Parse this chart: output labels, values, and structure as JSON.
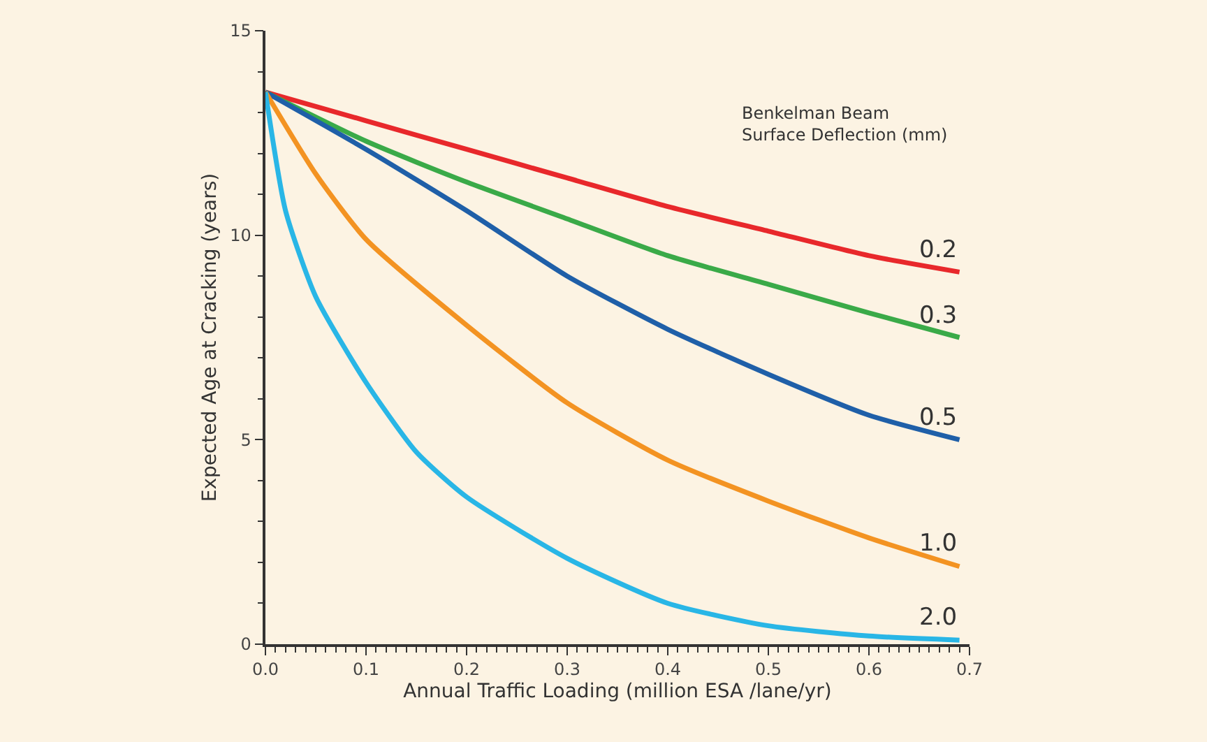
{
  "chart_data": {
    "type": "line",
    "xlabel": "Annual Traffic Loading (million ESA /lane/yr)",
    "ylabel": "Expected Age at Cracking (years)",
    "legend_title": "Benkelman Beam\nSurface Deflection (mm)",
    "xlim": [
      0,
      0.7
    ],
    "ylim": [
      0,
      15
    ],
    "xticks": [
      {
        "value": 0,
        "label": "0.0"
      },
      0.1,
      0.2,
      0.3,
      0.4,
      0.5,
      0.6,
      0.7
    ],
    "yticks": [
      0,
      5,
      10,
      15
    ],
    "grid": false,
    "legend": false,
    "marker": "none",
    "line_style": "solid",
    "series": [
      {
        "name": "0.2",
        "color": "#e8282b",
        "x": [
          0,
          0.1,
          0.2,
          0.3,
          0.4,
          0.5,
          0.6,
          0.69
        ],
        "values": [
          13.5,
          12.8,
          12.1,
          11.4,
          10.7,
          10.1,
          9.5,
          9.1
        ]
      },
      {
        "name": "0.3",
        "color": "#3aaa48",
        "x": [
          0,
          0.1,
          0.2,
          0.3,
          0.4,
          0.5,
          0.6,
          0.69
        ],
        "values": [
          13.5,
          12.3,
          11.3,
          10.4,
          9.5,
          8.8,
          8.1,
          7.5
        ]
      },
      {
        "name": "0.5",
        "color": "#1f5fa8",
        "x": [
          0,
          0.1,
          0.2,
          0.3,
          0.4,
          0.5,
          0.6,
          0.69
        ],
        "values": [
          13.5,
          12.1,
          10.6,
          9.0,
          7.7,
          6.6,
          5.6,
          5.0
        ]
      },
      {
        "name": "1.0",
        "color": "#f39322",
        "x": [
          0,
          0.05,
          0.1,
          0.2,
          0.3,
          0.4,
          0.5,
          0.6,
          0.69
        ],
        "values": [
          13.5,
          11.5,
          9.9,
          7.8,
          5.9,
          4.5,
          3.5,
          2.6,
          1.9
        ]
      },
      {
        "name": "2.0",
        "color": "#29b6e6",
        "x": [
          0,
          0.02,
          0.05,
          0.1,
          0.15,
          0.2,
          0.3,
          0.4,
          0.5,
          0.6,
          0.69
        ],
        "values": [
          13.5,
          10.6,
          8.5,
          6.4,
          4.7,
          3.6,
          2.1,
          1.0,
          0.45,
          0.2,
          0.1
        ]
      }
    ]
  }
}
